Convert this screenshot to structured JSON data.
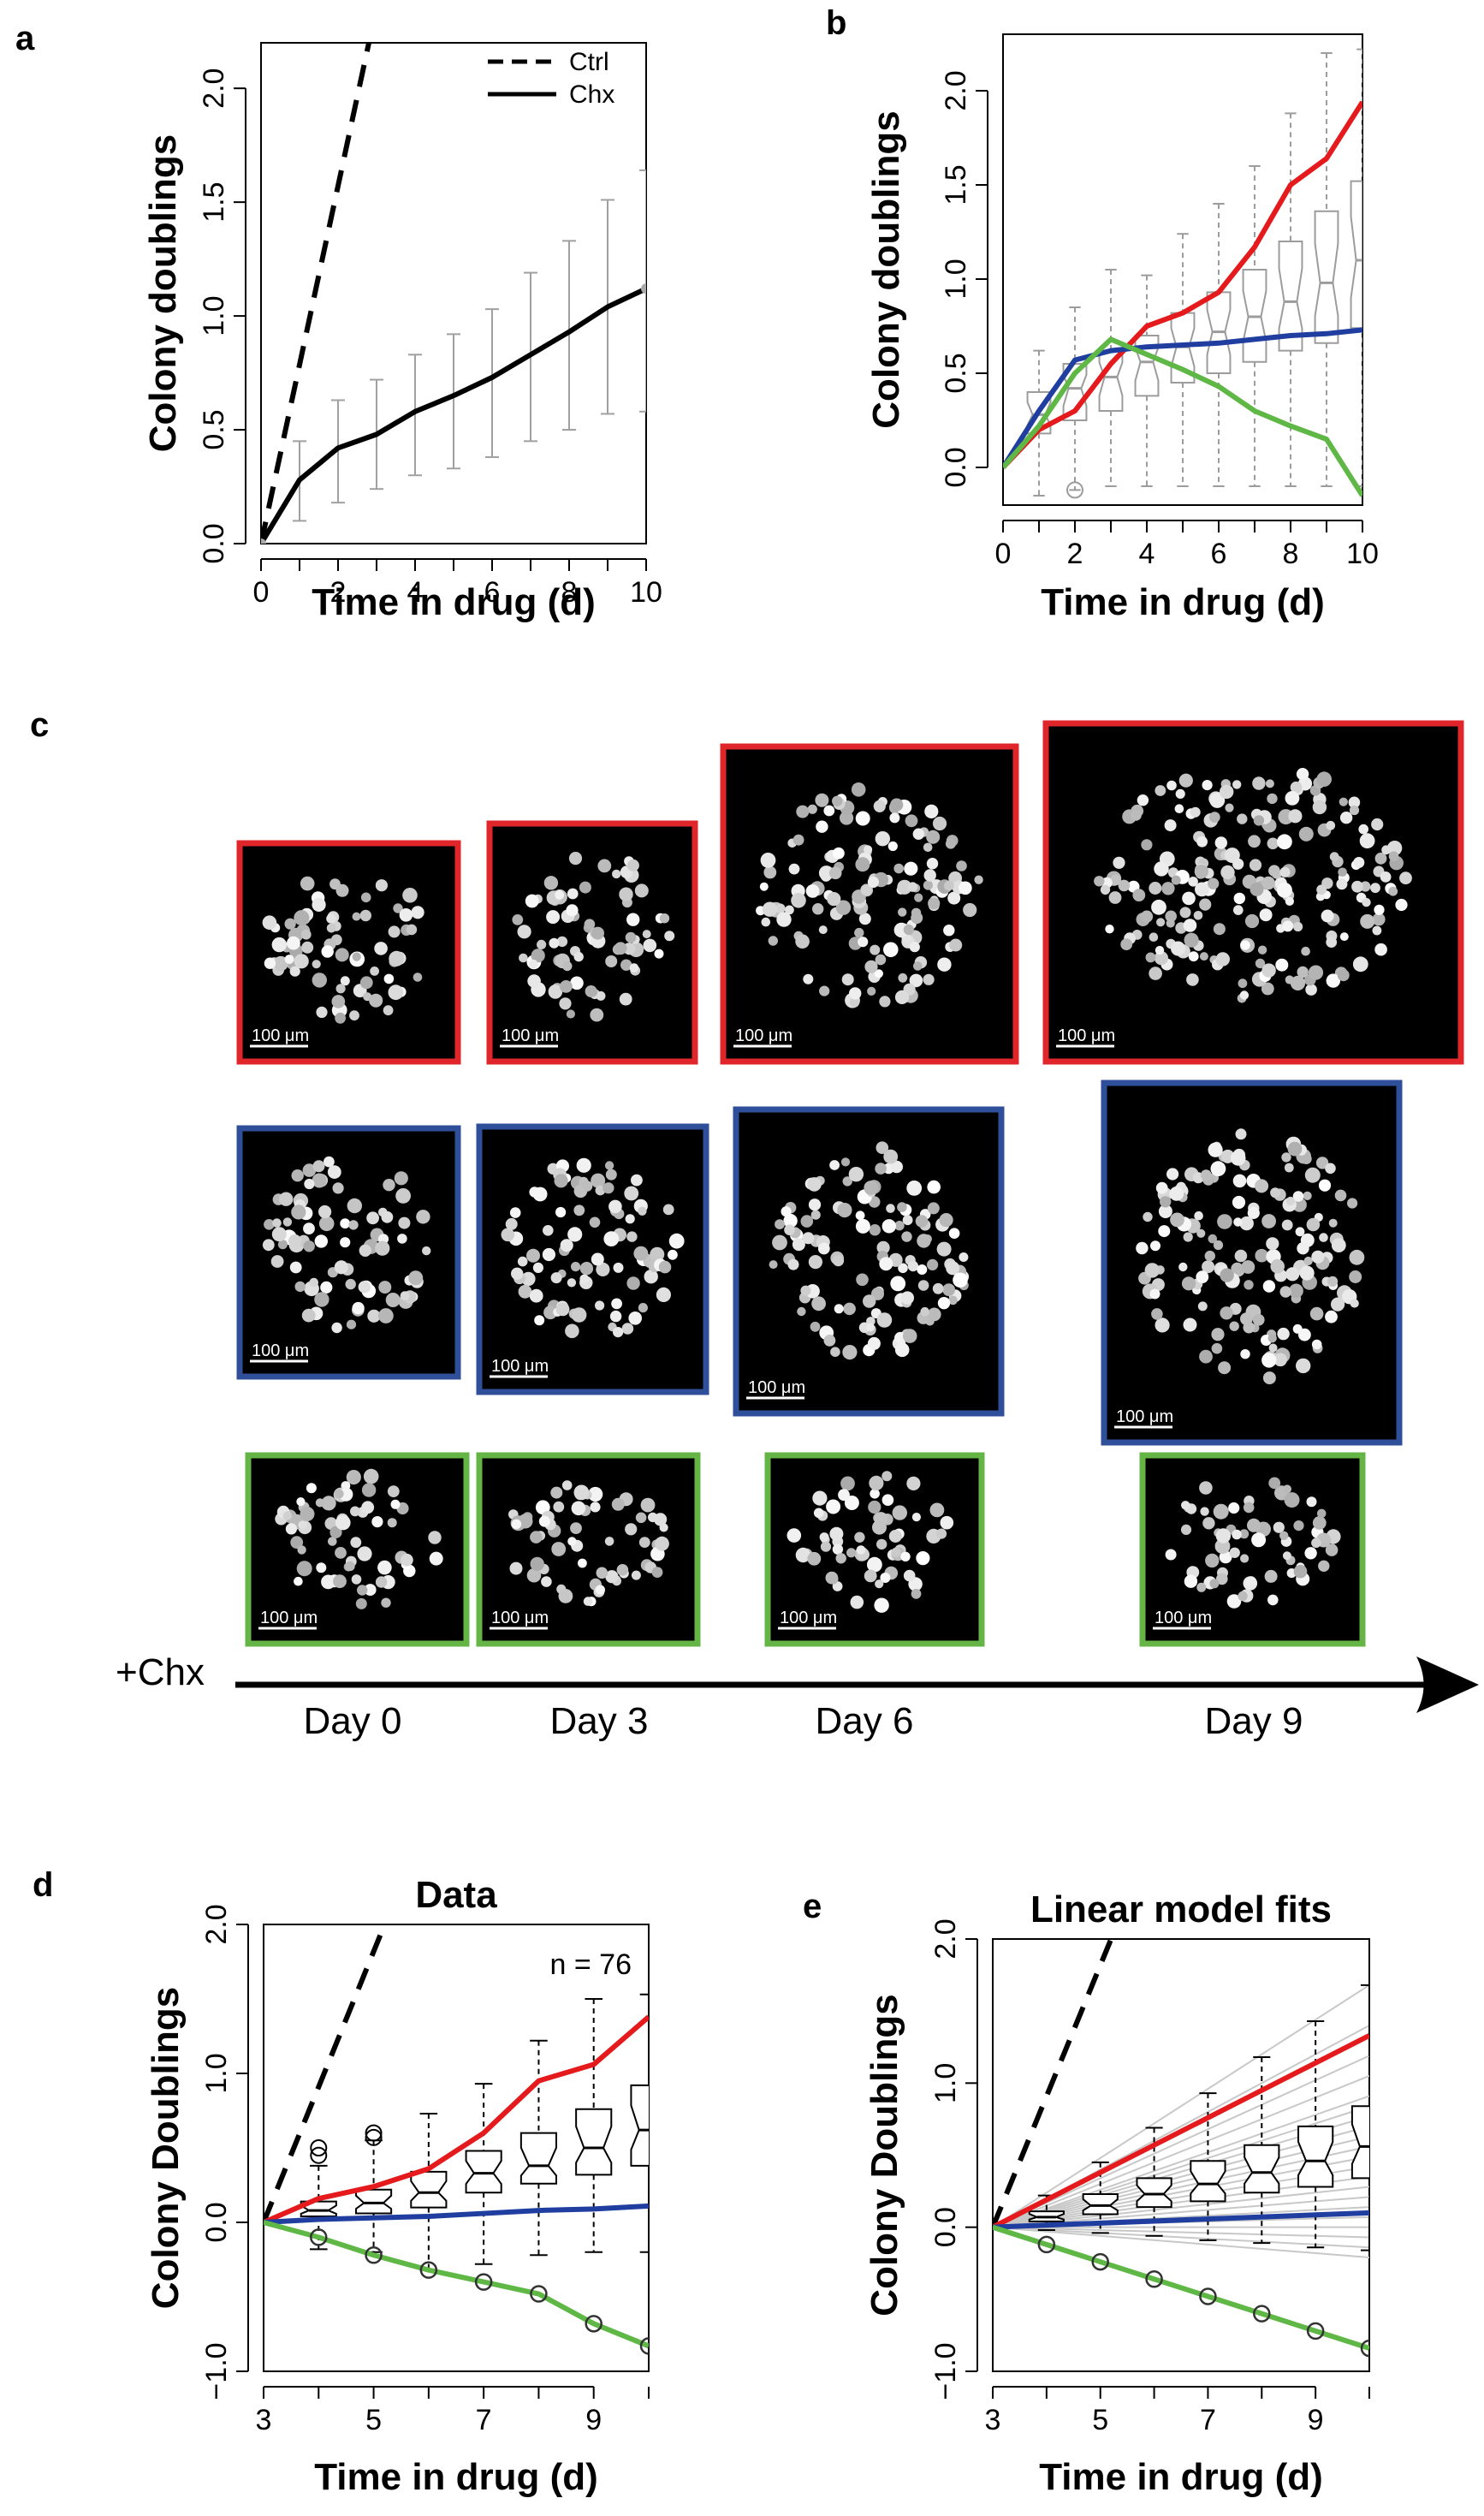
{
  "panels": {
    "a": "a",
    "b": "b",
    "c": "c",
    "d": "d",
    "e": "e"
  },
  "chart_data": [
    {
      "id": "a",
      "type": "line",
      "title": "",
      "xlabel": "Time in drug (d)",
      "ylabel": "Colony doublings",
      "xlim": [
        0,
        10
      ],
      "ylim": [
        0,
        2.2
      ],
      "xticks": [
        "0",
        "2",
        "4",
        "6",
        "8",
        "10"
      ],
      "yticks": [
        "0.0",
        "0.5",
        "1.0",
        "1.5",
        "2.0"
      ],
      "legend": {
        "position": "top-right",
        "entries": [
          "Ctrl",
          "Chx"
        ]
      },
      "series": [
        {
          "name": "Ctrl",
          "style": "dashed",
          "color": "#000000",
          "x": [
            0,
            2.8
          ],
          "y": [
            0,
            2.2
          ]
        },
        {
          "name": "Chx",
          "style": "solid",
          "color": "#000000",
          "x": [
            0,
            1,
            2,
            3,
            4,
            5,
            6,
            7,
            8,
            9,
            10
          ],
          "y": [
            0.0,
            0.28,
            0.42,
            0.48,
            0.58,
            0.65,
            0.73,
            0.83,
            0.93,
            1.04,
            1.12
          ],
          "err_low": [
            0.0,
            0.1,
            0.18,
            0.24,
            0.3,
            0.33,
            0.38,
            0.45,
            0.5,
            0.57,
            0.58
          ],
          "err_high": [
            0.0,
            0.45,
            0.63,
            0.72,
            0.83,
            0.92,
            1.03,
            1.19,
            1.33,
            1.51,
            1.64
          ]
        }
      ]
    },
    {
      "id": "b",
      "type": "line",
      "title": "",
      "xlabel": "Time in drug (d)",
      "ylabel": "Colony doublings",
      "xlim": [
        0,
        10
      ],
      "ylim": [
        -0.2,
        2.3
      ],
      "xticks": [
        "0",
        "2",
        "4",
        "6",
        "8",
        "10"
      ],
      "yticks": [
        "0.0",
        "0.5",
        "1.0",
        "1.5",
        "2.0"
      ],
      "boxes": [
        {
          "x": 1,
          "min": -0.15,
          "q1": 0.18,
          "med": 0.28,
          "q3": 0.4,
          "max": 0.62
        },
        {
          "x": 2,
          "min": -0.12,
          "q1": 0.25,
          "med": 0.42,
          "q3": 0.55,
          "max": 0.85
        },
        {
          "x": 3,
          "min": -0.1,
          "q1": 0.3,
          "med": 0.48,
          "q3": 0.62,
          "max": 1.05
        },
        {
          "x": 4,
          "min": -0.1,
          "q1": 0.38,
          "med": 0.56,
          "q3": 0.7,
          "max": 1.02
        },
        {
          "x": 5,
          "min": -0.1,
          "q1": 0.45,
          "med": 0.64,
          "q3": 0.82,
          "max": 1.24
        },
        {
          "x": 6,
          "min": -0.1,
          "q1": 0.5,
          "med": 0.72,
          "q3": 0.93,
          "max": 1.4
        },
        {
          "x": 7,
          "min": -0.1,
          "q1": 0.56,
          "med": 0.8,
          "q3": 1.05,
          "max": 1.6
        },
        {
          "x": 8,
          "min": -0.1,
          "q1": 0.62,
          "med": 0.88,
          "q3": 1.2,
          "max": 1.88
        },
        {
          "x": 9,
          "min": -0.1,
          "q1": 0.66,
          "med": 0.98,
          "q3": 1.36,
          "max": 2.2
        },
        {
          "x": 10,
          "min": -0.1,
          "q1": 0.74,
          "med": 1.1,
          "q3": 1.52,
          "max": 2.22
        }
      ],
      "outliers": [
        {
          "x": 2,
          "y": -0.12
        }
      ],
      "series": [
        {
          "name": "",
          "color": "#e41a1c",
          "x": [
            0,
            1,
            2,
            3,
            4,
            5,
            6,
            7,
            8,
            9,
            10
          ],
          "y": [
            0.0,
            0.2,
            0.3,
            0.55,
            0.75,
            0.82,
            0.93,
            1.17,
            1.5,
            1.64,
            1.94
          ]
        },
        {
          "name": "",
          "color": "#1f3ea0",
          "x": [
            0,
            1,
            2,
            3,
            4,
            5,
            6,
            7,
            8,
            9,
            10
          ],
          "y": [
            0.0,
            0.3,
            0.57,
            0.62,
            0.64,
            0.65,
            0.66,
            0.68,
            0.7,
            0.71,
            0.73
          ]
        },
        {
          "name": "",
          "color": "#5fb846",
          "x": [
            0,
            1,
            2,
            3,
            4,
            5,
            6,
            7,
            8,
            9,
            10
          ],
          "y": [
            0.0,
            0.22,
            0.5,
            0.68,
            0.6,
            0.52,
            0.43,
            0.3,
            0.22,
            0.15,
            -0.15
          ]
        }
      ]
    },
    {
      "id": "d",
      "type": "line",
      "title": "Data",
      "annotation": "n = 76",
      "xlabel": "Time in drug (d)",
      "ylabel": "Colony Doublings",
      "xlim": [
        3,
        10
      ],
      "ylim": [
        -1.0,
        2.0
      ],
      "xticks": [
        "3",
        "5",
        "7",
        "9"
      ],
      "yticks": [
        "−1.0",
        "0.0",
        "1.0",
        "2.0"
      ],
      "boxes": [
        {
          "x": 4,
          "min": -0.18,
          "q1": 0.04,
          "med": 0.08,
          "q3": 0.14,
          "max": 0.38
        },
        {
          "x": 5,
          "min": -0.2,
          "q1": 0.06,
          "med": 0.13,
          "q3": 0.22,
          "max": 0.55
        },
        {
          "x": 6,
          "min": -0.32,
          "q1": 0.1,
          "med": 0.2,
          "q3": 0.34,
          "max": 0.73
        },
        {
          "x": 7,
          "min": -0.28,
          "q1": 0.2,
          "med": 0.33,
          "q3": 0.48,
          "max": 0.93
        },
        {
          "x": 8,
          "min": -0.22,
          "q1": 0.26,
          "med": 0.38,
          "q3": 0.6,
          "max": 1.22
        },
        {
          "x": 9,
          "min": -0.2,
          "q1": 0.32,
          "med": 0.5,
          "q3": 0.76,
          "max": 1.5
        },
        {
          "x": 10,
          "min": -0.2,
          "q1": 0.38,
          "med": 0.62,
          "q3": 0.92,
          "max": 1.53
        }
      ],
      "outliers": [
        {
          "x": 4,
          "y": 0.5
        },
        {
          "x": 4,
          "y": 0.45
        },
        {
          "x": 5,
          "y": 0.6
        },
        {
          "x": 5,
          "y": 0.57
        }
      ],
      "series": [
        {
          "name": "",
          "style": "dashed",
          "color": "#000000",
          "x": [
            3,
            5.2
          ],
          "y": [
            0,
            2.0
          ]
        },
        {
          "name": "",
          "color": "#e41a1c",
          "x": [
            3,
            4,
            5,
            6,
            7,
            8,
            9,
            10
          ],
          "y": [
            0.0,
            0.16,
            0.24,
            0.36,
            0.6,
            0.95,
            1.06,
            1.38
          ]
        },
        {
          "name": "",
          "color": "#1f3ea0",
          "x": [
            3,
            4,
            5,
            6,
            7,
            8,
            9,
            10
          ],
          "y": [
            0.0,
            0.02,
            0.03,
            0.04,
            0.06,
            0.08,
            0.09,
            0.11
          ]
        },
        {
          "name": "",
          "color": "#5fb846",
          "markers": true,
          "x": [
            3,
            4,
            5,
            6,
            7,
            8,
            9,
            10
          ],
          "y": [
            0.0,
            -0.1,
            -0.22,
            -0.32,
            -0.4,
            -0.48,
            -0.68,
            -0.83
          ]
        }
      ]
    },
    {
      "id": "e",
      "type": "line",
      "title": "Linear model fits",
      "xlabel": "Time in drug (d)",
      "ylabel": "Colony Doublings",
      "xlim": [
        3,
        10
      ],
      "ylim": [
        -1.0,
        2.0
      ],
      "xticks": [
        "3",
        "5",
        "7",
        "9"
      ],
      "yticks": [
        "−1.0",
        "0.0",
        "1.0",
        "2.0"
      ],
      "fan_slopes": [
        0.24,
        0.2,
        0.17,
        0.15,
        0.13,
        0.12,
        0.11,
        0.1,
        0.09,
        0.08,
        0.07,
        0.06,
        0.05,
        0.04,
        0.03,
        0.02,
        0.01,
        0.0,
        -0.01,
        -0.02,
        -0.03
      ],
      "boxes": [
        {
          "x": 4,
          "min": -0.02,
          "q1": 0.04,
          "med": 0.07,
          "q3": 0.11,
          "max": 0.22
        },
        {
          "x": 5,
          "min": -0.04,
          "q1": 0.09,
          "med": 0.15,
          "q3": 0.23,
          "max": 0.45
        },
        {
          "x": 6,
          "min": -0.06,
          "q1": 0.14,
          "med": 0.23,
          "q3": 0.34,
          "max": 0.69
        },
        {
          "x": 7,
          "min": -0.09,
          "q1": 0.18,
          "med": 0.3,
          "q3": 0.46,
          "max": 0.93
        },
        {
          "x": 8,
          "min": -0.11,
          "q1": 0.24,
          "med": 0.38,
          "q3": 0.57,
          "max": 1.18
        },
        {
          "x": 9,
          "min": -0.14,
          "q1": 0.28,
          "med": 0.46,
          "q3": 0.7,
          "max": 1.43
        },
        {
          "x": 10,
          "min": -0.16,
          "q1": 0.34,
          "med": 0.56,
          "q3": 0.84,
          "max": 1.68
        }
      ],
      "series": [
        {
          "name": "",
          "style": "dashed",
          "color": "#000000",
          "x": [
            3,
            5.2
          ],
          "y": [
            0,
            2.0
          ]
        },
        {
          "name": "",
          "color": "#e41a1c",
          "x": [
            3,
            10
          ],
          "y": [
            0.0,
            1.33
          ]
        },
        {
          "name": "",
          "color": "#1f3ea0",
          "x": [
            3,
            10
          ],
          "y": [
            0.0,
            0.1
          ]
        },
        {
          "name": "",
          "color": "#5fb846",
          "markers": true,
          "x": [
            3,
            4,
            5,
            6,
            7,
            8,
            9,
            10
          ],
          "y": [
            0.0,
            -0.12,
            -0.24,
            -0.36,
            -0.48,
            -0.6,
            -0.72,
            -0.84
          ]
        }
      ]
    }
  ],
  "panel_c": {
    "treatment_label": "+Chx",
    "day_labels": [
      "Day 0",
      "Day 3",
      "Day 6",
      "Day 9"
    ],
    "scale_bar_label": "100 μm",
    "row_colors": [
      "#e0262b",
      "#2f4f9a",
      "#64b545"
    ]
  }
}
